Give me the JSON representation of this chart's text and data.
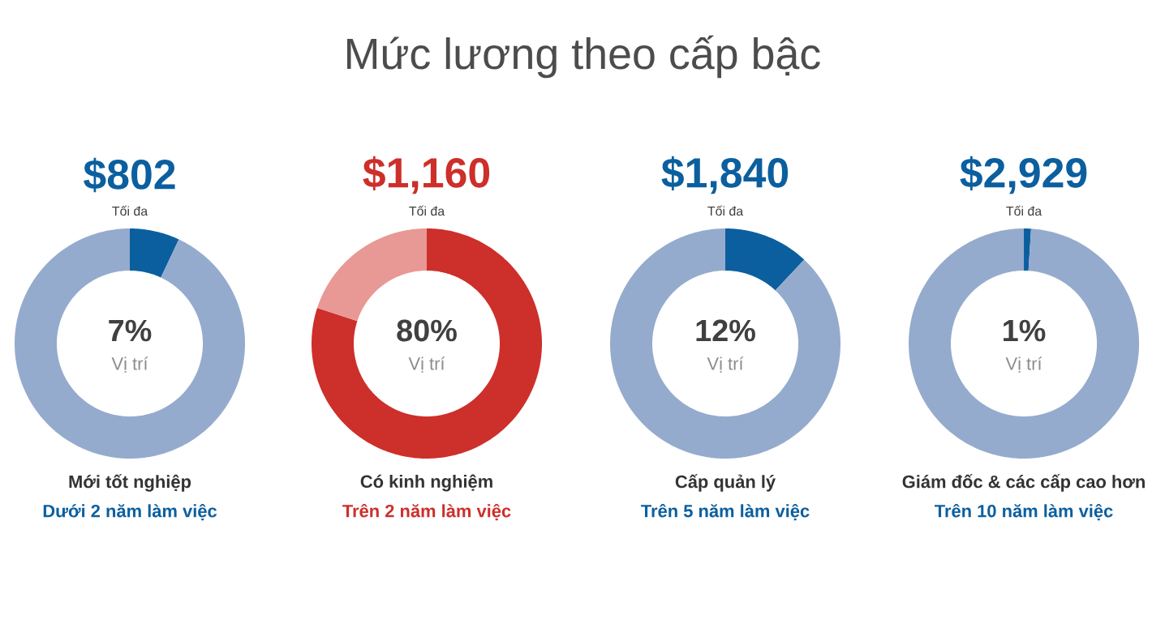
{
  "chart_data": [
    {
      "type": "other",
      "title": "Mức lương theo cấp bậc"
    },
    {
      "type": "donut",
      "title": "$802",
      "subtitle": "Tối đa",
      "categories": [
        null,
        null
      ],
      "values": [
        7,
        93
      ],
      "colors": [
        "#0b5f9f",
        "#95abcd"
      ],
      "annotations": [
        "7%",
        "Vị trí",
        "Mới tốt nghiệp",
        "Dưới 2 năm làm việc"
      ]
    },
    {
      "type": "donut",
      "title": "$1,160",
      "subtitle": "Tối đa",
      "categories": [
        null,
        null
      ],
      "values": [
        80,
        20
      ],
      "colors": [
        "#cd2f2a",
        "#e89895"
      ],
      "annotations": [
        "80%",
        "Vị trí",
        "Có kinh nghiệm",
        "Trên 2 năm làm việc"
      ]
    },
    {
      "type": "donut",
      "title": "$1,840",
      "subtitle": "Tối đa",
      "categories": [
        null,
        null
      ],
      "values": [
        12,
        88
      ],
      "colors": [
        "#0b5f9f",
        "#95abcd"
      ],
      "annotations": [
        "12%",
        "Vị trí",
        "Cấp quản lý",
        "Trên 5 năm làm việc"
      ]
    },
    {
      "type": "donut",
      "title": "$2,929",
      "subtitle": "Tối đa",
      "categories": [
        null,
        null
      ],
      "values": [
        1,
        99
      ],
      "colors": [
        "#0b5f9f",
        "#95abcd"
      ],
      "annotations": [
        "1%",
        "Vị trí",
        "Giám đốc & các cấp cao hơn",
        "Trên 10 năm làm việc"
      ]
    }
  ]
}
